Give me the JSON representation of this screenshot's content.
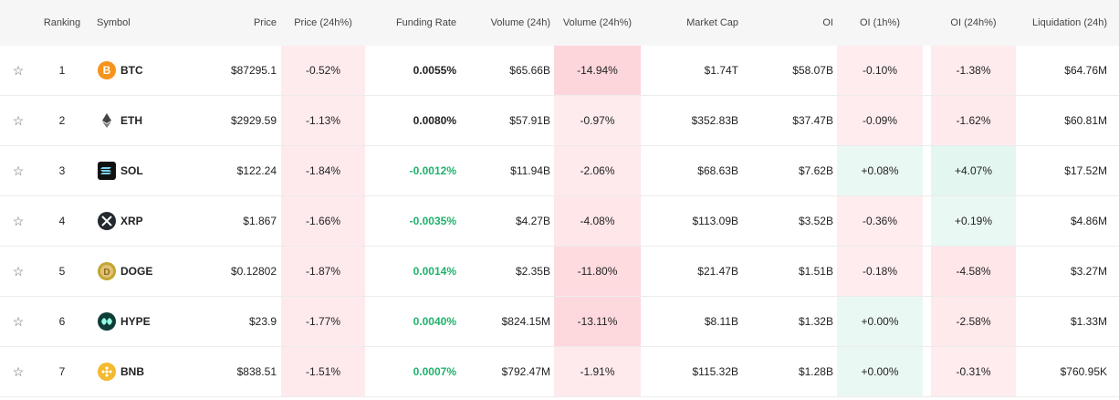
{
  "table": {
    "headers": [
      "Ranking",
      "Symbol",
      "Price",
      "Price (24h%)",
      "Funding Rate",
      "Volume (24h)",
      "Volume (24h%)",
      "Market Cap",
      "OI",
      "OI (1h%)",
      "OI (24h%)",
      "Liquidation (24h)"
    ],
    "rows": [
      [
        1,
        "BTC",
        "$87295.1",
        "-0.52%",
        "0.0055%",
        "$65.66B",
        "-14.94%",
        "$1.74T",
        "$58.07B",
        "-0.10%",
        "-1.38%",
        "$64.76M"
      ],
      [
        2,
        "ETH",
        "$2929.59",
        "-1.13%",
        "0.0080%",
        "$57.91B",
        "-0.97%",
        "$352.83B",
        "$37.47B",
        "-0.09%",
        "-1.62%",
        "$60.81M"
      ],
      [
        3,
        "SOL",
        "$122.24",
        "-1.84%",
        "-0.0012%",
        "$11.94B",
        "-2.06%",
        "$68.63B",
        "$7.62B",
        "+0.08%",
        "+4.07%",
        "$17.52M"
      ],
      [
        4,
        "XRP",
        "$1.867",
        "-1.66%",
        "-0.0035%",
        "$4.27B",
        "-4.08%",
        "$113.09B",
        "$3.52B",
        "-0.36%",
        "+0.19%",
        "$4.86M"
      ],
      [
        5,
        "DOGE",
        "$0.12802",
        "-1.87%",
        "0.0014%",
        "$2.35B",
        "-11.80%",
        "$21.47B",
        "$1.51B",
        "-0.18%",
        "-4.58%",
        "$3.27M"
      ],
      [
        6,
        "HYPE",
        "$23.9",
        "-1.77%",
        "0.0040%",
        "$824.15M",
        "-13.11%",
        "$8.11B",
        "$1.32B",
        "+0.00%",
        "-2.58%",
        "$1.33M"
      ],
      [
        7,
        "BNB",
        "$838.51",
        "-1.51%",
        "0.0007%",
        "$792.47M",
        "-1.91%",
        "$115.32B",
        "$1.28B",
        "+0.00%",
        "-0.31%",
        "$760.95K"
      ]
    ]
  }
}
